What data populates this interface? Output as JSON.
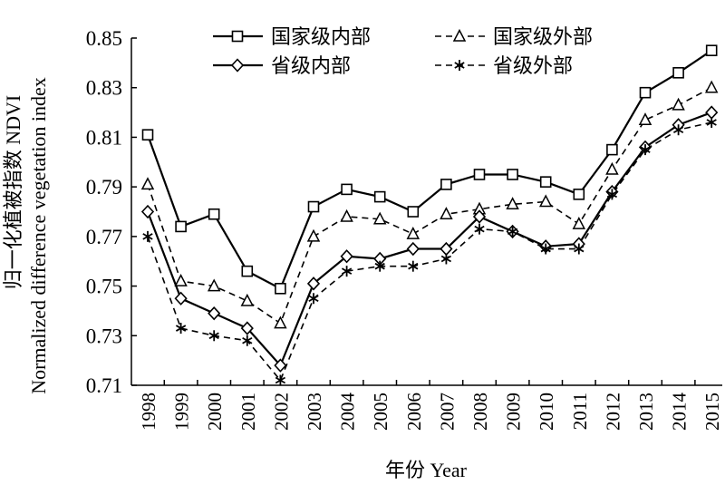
{
  "chart_data": {
    "type": "line",
    "categories": [
      "1998",
      "1999",
      "2000",
      "2001",
      "2002",
      "2003",
      "2004",
      "2005",
      "2006",
      "2007",
      "2008",
      "2009",
      "2010",
      "2011",
      "2012",
      "2013",
      "2014",
      "2015"
    ],
    "series": [
      {
        "name": "国家级内部",
        "marker": "square",
        "dash": "solid",
        "values": [
          0.811,
          0.774,
          0.779,
          0.756,
          0.749,
          0.782,
          0.789,
          0.786,
          0.78,
          0.791,
          0.795,
          0.795,
          0.792,
          0.787,
          0.805,
          0.828,
          0.836,
          0.845
        ]
      },
      {
        "name": "国家级外部",
        "marker": "triangle",
        "dash": "dashed",
        "values": [
          0.791,
          0.752,
          0.75,
          0.744,
          0.735,
          0.77,
          0.778,
          0.777,
          0.771,
          0.779,
          0.781,
          0.783,
          0.784,
          0.775,
          0.797,
          0.817,
          0.823,
          0.83
        ]
      },
      {
        "name": "省级内部",
        "marker": "diamond",
        "dash": "solid",
        "values": [
          0.78,
          0.745,
          0.739,
          0.733,
          0.718,
          0.751,
          0.762,
          0.761,
          0.765,
          0.765,
          0.778,
          0.772,
          0.766,
          0.767,
          0.788,
          0.806,
          0.815,
          0.82
        ]
      },
      {
        "name": "省级外部",
        "marker": "asterisk",
        "dash": "dashed",
        "values": [
          0.77,
          0.733,
          0.73,
          0.728,
          0.712,
          0.745,
          0.756,
          0.758,
          0.758,
          0.761,
          0.773,
          0.772,
          0.765,
          0.765,
          0.787,
          0.805,
          0.813,
          0.816
        ]
      }
    ],
    "ylim": [
      0.71,
      0.85
    ],
    "yticks": [
      "0.71",
      "0.73",
      "0.75",
      "0.77",
      "0.79",
      "0.81",
      "0.83",
      "0.85"
    ],
    "ylabel_cn": "归一化植被指数 NDVI",
    "ylabel_en": "Normalized difference vegetation index",
    "xlabel": "年份 Year",
    "grid": false,
    "legend_position": "top"
  }
}
